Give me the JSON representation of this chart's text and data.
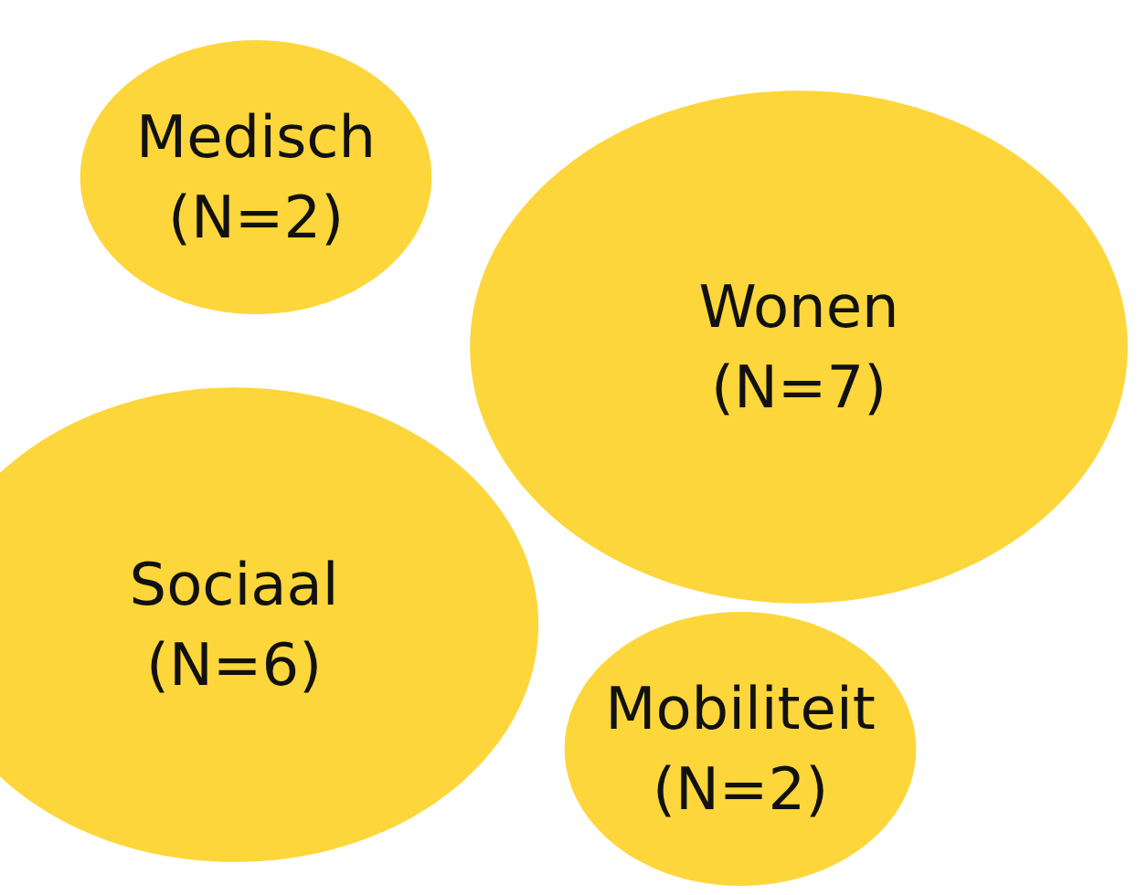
{
  "chart_data": {
    "type": "other",
    "categories": [
      "Medisch",
      "Wonen",
      "Sociaal",
      "Mobiliteit"
    ],
    "values": [
      2,
      7,
      6,
      2
    ],
    "value_labels": [
      "(N=2)",
      "(N=7)",
      "(N=6)",
      "(N=2)"
    ],
    "color": "#fdd63b"
  }
}
